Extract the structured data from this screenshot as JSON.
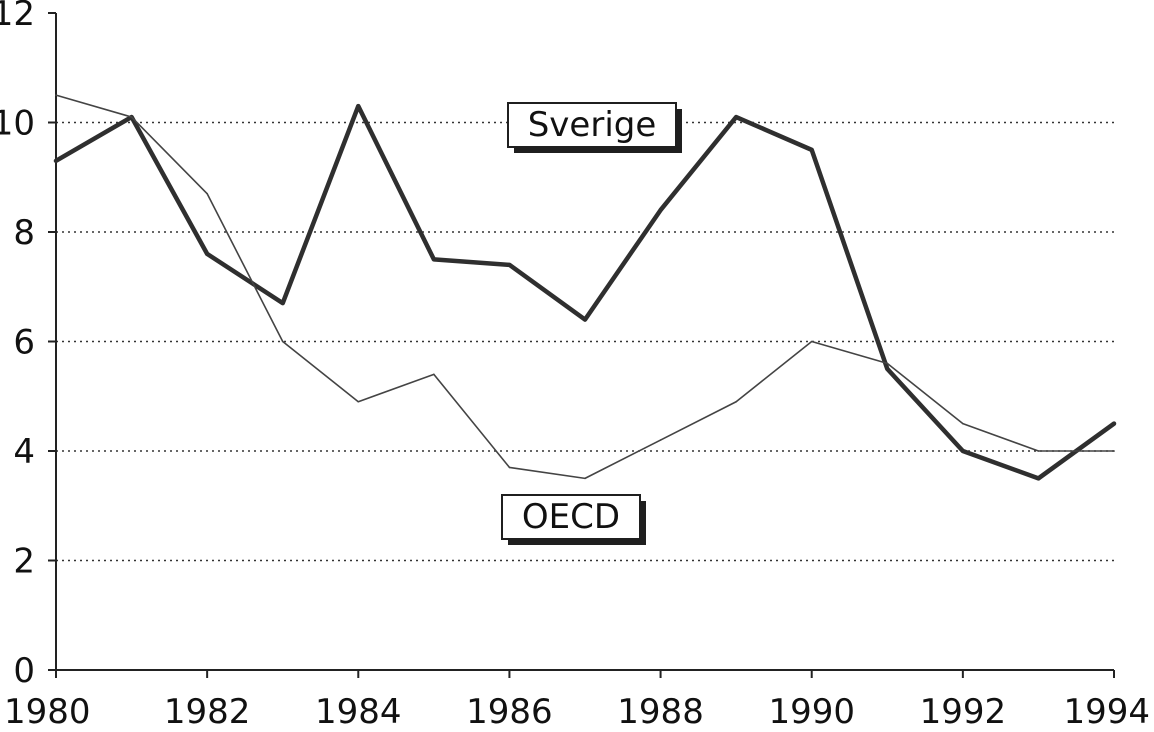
{
  "chart_data": {
    "type": "line",
    "x": [
      1980,
      1981,
      1982,
      1983,
      1984,
      1985,
      1986,
      1987,
      1988,
      1989,
      1990,
      1991,
      1992,
      1993,
      1994
    ],
    "x_ticks": [
      "1980",
      "1982",
      "1984",
      "1986",
      "1988",
      "1990",
      "1992",
      "1994"
    ],
    "y_ticks": [
      "0",
      "2",
      "4",
      "6",
      "8",
      "10",
      "12"
    ],
    "xlim": [
      1980,
      1994
    ],
    "ylim": [
      0,
      12
    ],
    "title": "",
    "xlabel": "",
    "ylabel": "",
    "grid": "horizontal dotted",
    "legend": "inline boxed labels",
    "series": [
      {
        "name": "Sverige",
        "values": [
          9.3,
          10.1,
          7.6,
          6.7,
          10.3,
          7.5,
          7.4,
          6.4,
          8.4,
          10.1,
          9.5,
          5.5,
          4.0,
          3.5,
          4.5
        ],
        "color": "#2f2f2f",
        "style": "thick"
      },
      {
        "name": "OECD",
        "values": [
          10.5,
          10.1,
          8.7,
          6.0,
          4.9,
          5.4,
          3.7,
          3.5,
          4.2,
          4.9,
          6.0,
          5.6,
          4.5,
          4.0,
          4.0
        ],
        "color": "#444444",
        "style": "thin"
      }
    ]
  }
}
